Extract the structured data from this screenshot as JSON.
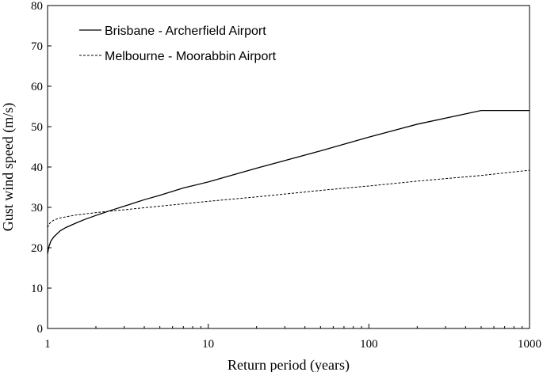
{
  "chart_data": {
    "type": "line",
    "title": "",
    "xlabel": "Return period (years)",
    "ylabel": "Gust wind speed (m/s)",
    "xscale": "log",
    "xlim": [
      1,
      1000
    ],
    "ylim": [
      0,
      80
    ],
    "xticks": [
      1,
      10,
      100,
      1000
    ],
    "yticks": [
      0,
      10,
      20,
      30,
      40,
      50,
      60,
      70,
      80
    ],
    "grid": false,
    "legend_position": "top-left",
    "series": [
      {
        "name": "Brisbane - Archerfield Airport",
        "style": "solid",
        "color": "#000000",
        "x": [
          1.0,
          1.02,
          1.05,
          1.1,
          1.2,
          1.3,
          1.5,
          1.7,
          2,
          2.5,
          3,
          4,
          5,
          7,
          10,
          20,
          50,
          100,
          200,
          500,
          1000
        ],
        "y": [
          18.5,
          20.3,
          21.7,
          22.8,
          24.2,
          25.0,
          26.1,
          27.0,
          28.0,
          29.3,
          30.3,
          31.9,
          33.0,
          34.8,
          36.3,
          39.7,
          44.0,
          47.4,
          50.6,
          54.0,
          54.0
        ]
      },
      {
        "name": "Melbourne - Moorabbin Airport",
        "style": "dashed",
        "color": "#000000",
        "x": [
          1.0,
          1.02,
          1.05,
          1.1,
          1.2,
          1.5,
          2,
          2.5,
          3,
          5,
          10,
          20,
          50,
          100,
          200,
          500,
          1000
        ],
        "y": [
          25.0,
          25.8,
          26.4,
          26.9,
          27.4,
          28.1,
          28.7,
          29.1,
          29.4,
          30.3,
          31.5,
          32.6,
          34.2,
          35.3,
          36.5,
          37.9,
          39.2
        ]
      }
    ]
  }
}
